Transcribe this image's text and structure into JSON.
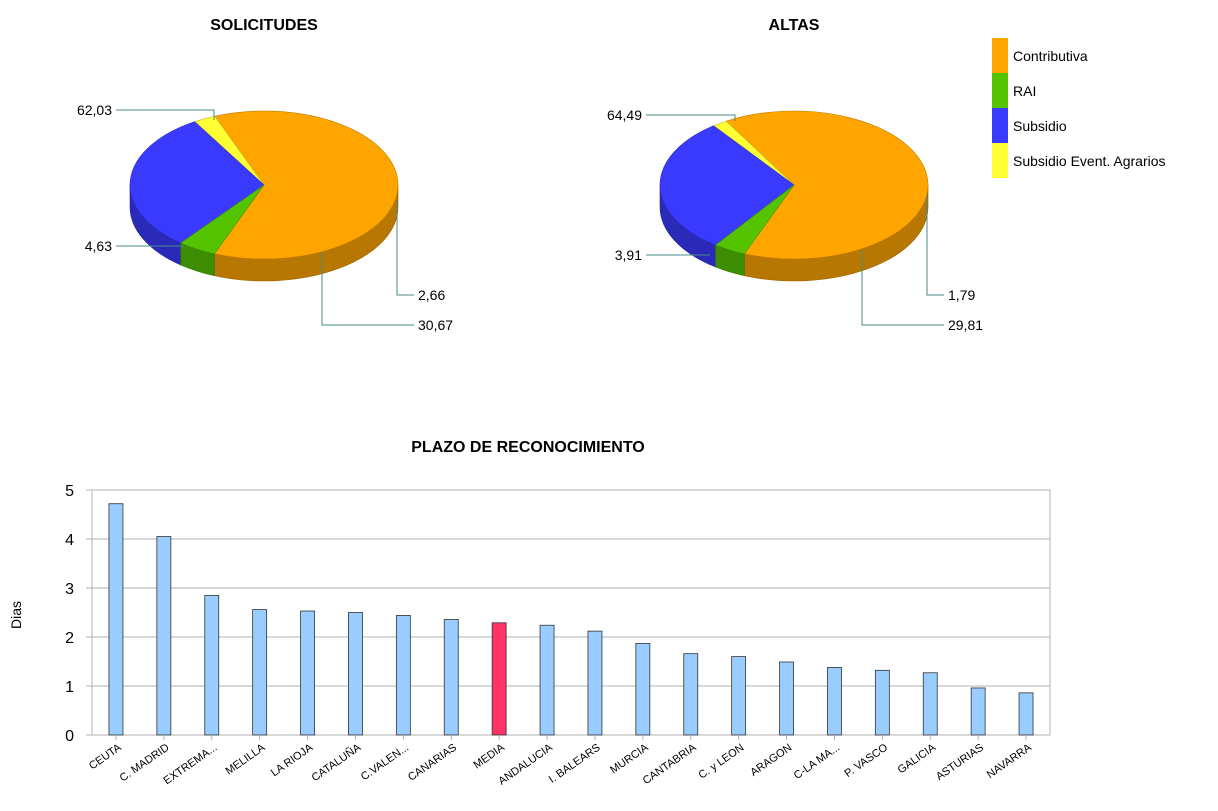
{
  "colors": {
    "Contributiva": "#ffa500",
    "RAI": "#55c400",
    "Subsidio": "#3a3aff",
    "Subsidio Event. Agrarios": "#ffff33",
    "bar": "#99ccff",
    "bar_highlight": "#ff3366"
  },
  "legend": [
    "Contributiva",
    "RAI",
    "Subsidio",
    "Subsidio Event. Agrarios"
  ],
  "chart_data": [
    {
      "type": "pie",
      "title": "SOLICITUDES",
      "slices": [
        {
          "name": "Contributiva",
          "value": 62.03,
          "label": "62,03"
        },
        {
          "name": "RAI",
          "value": 4.63,
          "label": "4,63"
        },
        {
          "name": "Subsidio",
          "value": 30.67,
          "label": "30,67"
        },
        {
          "name": "Subsidio Event. Agrarios",
          "value": 2.66,
          "label": "2,66"
        }
      ]
    },
    {
      "type": "pie",
      "title": "ALTAS",
      "slices": [
        {
          "name": "Contributiva",
          "value": 64.49,
          "label": "64,49"
        },
        {
          "name": "RAI",
          "value": 3.91,
          "label": "3,91"
        },
        {
          "name": "Subsidio",
          "value": 29.81,
          "label": "29,81"
        },
        {
          "name": "Subsidio Event. Agrarios",
          "value": 1.79,
          "label": "1,79"
        }
      ]
    },
    {
      "type": "bar",
      "title": "PLAZO DE RECONOCIMIENTO",
      "ylabel": "Dias",
      "xlabel": "",
      "ylim": [
        0,
        5
      ],
      "yticks": [
        "0",
        "1",
        "2",
        "3",
        "4",
        "5"
      ],
      "grid": true,
      "highlight": "MEDIA",
      "categories": [
        "CEUTA",
        "C. MADRID",
        "EXTREMA...",
        "MELILLA",
        "LA RIOJA",
        "CATALUÑA",
        "C.VALEN...",
        "CANARIAS",
        "MEDIA",
        "ANDALUCIA",
        "I. BALEARS",
        "MURCIA",
        "CANTABRIA",
        "C. y LEON",
        "ARAGON",
        "C-LA MA...",
        "P. VASCO",
        "GALICIA",
        "ASTURIAS",
        "NAVARRA"
      ],
      "values": [
        4.72,
        4.05,
        2.85,
        2.56,
        2.53,
        2.5,
        2.44,
        2.36,
        2.29,
        2.24,
        2.12,
        1.87,
        1.66,
        1.6,
        1.49,
        1.38,
        1.32,
        1.27,
        0.96,
        0.86
      ]
    }
  ]
}
